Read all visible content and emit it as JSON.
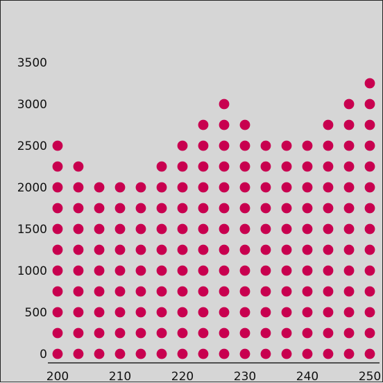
{
  "chart_data": {
    "type": "scatter",
    "style": "dot-matrix",
    "title": "",
    "xlabel": "",
    "ylabel": "",
    "x_ticks": [
      200,
      210,
      220,
      230,
      240,
      250
    ],
    "y_ticks": [
      0,
      500,
      1000,
      1500,
      2000,
      2500,
      3000,
      3500
    ],
    "xlim": [
      200,
      250
    ],
    "ylim": [
      0,
      3500
    ],
    "dot_step": 250,
    "x": [
      200,
      203.33,
      206.67,
      210,
      213.33,
      216.67,
      220,
      223.33,
      226.67,
      230,
      233.33,
      236.67,
      240,
      243.33,
      246.67,
      250
    ],
    "values": [
      2500,
      2250,
      2000,
      2000,
      2000,
      2250,
      2500,
      2750,
      3000,
      2750,
      2500,
      2500,
      2500,
      2750,
      3000,
      3250
    ],
    "colors": {
      "dot": "#c8004f",
      "background": "#d6d6d6",
      "axis": "#222222"
    },
    "grid": false,
    "legend": "none"
  }
}
